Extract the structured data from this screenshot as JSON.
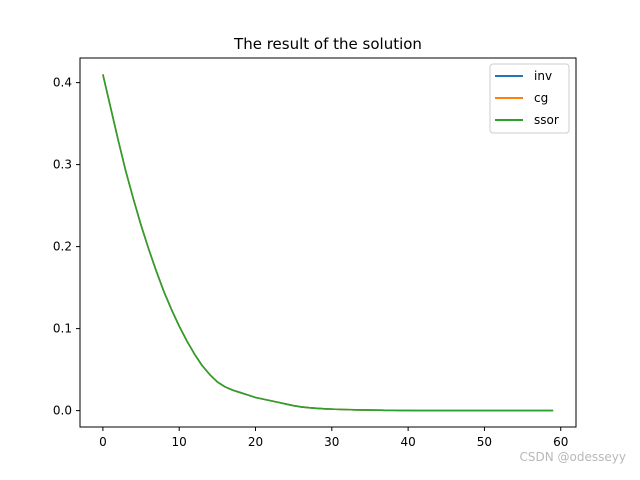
{
  "chart_data": {
    "type": "line",
    "title": "The result of the solution",
    "xlabel": "",
    "ylabel": "",
    "xlim": [
      -3,
      62
    ],
    "ylim": [
      -0.02,
      0.43
    ],
    "xticks": [
      0,
      10,
      20,
      30,
      40,
      50,
      60
    ],
    "yticks": [
      0.0,
      0.1,
      0.2,
      0.3,
      0.4
    ],
    "grid": false,
    "legend_position": "top-right",
    "x": [
      0,
      1,
      2,
      3,
      4,
      5,
      6,
      7,
      8,
      9,
      10,
      11,
      12,
      13,
      14,
      15,
      16,
      17,
      18,
      19,
      20,
      21,
      22,
      23,
      24,
      25,
      26,
      27,
      28,
      29,
      30,
      31,
      32,
      33,
      34,
      35,
      36,
      37,
      38,
      39,
      40,
      41,
      42,
      43,
      44,
      45,
      46,
      47,
      48,
      49,
      50,
      51,
      52,
      53,
      54,
      55,
      56,
      57,
      58,
      59
    ],
    "series": [
      {
        "name": "inv",
        "color": "#1f77b4",
        "values": [
          0.41,
          0.37,
          0.33,
          0.292,
          0.258,
          0.226,
          0.197,
          0.17,
          0.145,
          0.123,
          0.103,
          0.085,
          0.069,
          0.055,
          0.044,
          0.035,
          0.029,
          0.025,
          0.022,
          0.019,
          0.016,
          0.014,
          0.012,
          0.01,
          0.008,
          0.006,
          0.0045,
          0.0035,
          0.0028,
          0.0022,
          0.0018,
          0.0015,
          0.0012,
          0.001,
          0.0008,
          0.0006,
          0.0005,
          0.0004,
          0.0003,
          0.0002,
          0.0002,
          0.0001,
          0.0001,
          0.0001,
          0,
          0,
          0,
          0,
          0,
          0,
          0,
          0,
          0,
          0,
          0,
          0,
          0,
          0,
          0,
          0
        ]
      },
      {
        "name": "cg",
        "color": "#ff7f0e",
        "values": [
          0.41,
          0.37,
          0.33,
          0.292,
          0.258,
          0.226,
          0.197,
          0.17,
          0.145,
          0.123,
          0.103,
          0.085,
          0.069,
          0.055,
          0.044,
          0.035,
          0.029,
          0.025,
          0.022,
          0.019,
          0.016,
          0.014,
          0.012,
          0.01,
          0.008,
          0.006,
          0.0045,
          0.0035,
          0.0028,
          0.0022,
          0.0018,
          0.0015,
          0.0012,
          0.001,
          0.0008,
          0.0006,
          0.0005,
          0.0004,
          0.0003,
          0.0002,
          0.0002,
          0.0001,
          0.0001,
          0.0001,
          0,
          0,
          0,
          0,
          0,
          0,
          0,
          0,
          0,
          0,
          0,
          0,
          0,
          0,
          0,
          0
        ]
      },
      {
        "name": "ssor",
        "color": "#2ca02c",
        "values": [
          0.41,
          0.37,
          0.33,
          0.292,
          0.258,
          0.226,
          0.197,
          0.17,
          0.145,
          0.123,
          0.103,
          0.085,
          0.069,
          0.055,
          0.044,
          0.035,
          0.029,
          0.025,
          0.022,
          0.019,
          0.016,
          0.014,
          0.012,
          0.01,
          0.008,
          0.006,
          0.0045,
          0.0035,
          0.0028,
          0.0022,
          0.0018,
          0.0015,
          0.0012,
          0.001,
          0.0008,
          0.0006,
          0.0005,
          0.0004,
          0.0003,
          0.0002,
          0.0002,
          0.0001,
          0.0001,
          0.0001,
          0,
          0,
          0,
          0,
          0,
          0,
          0,
          0,
          0,
          0,
          0,
          0,
          0,
          0,
          0,
          0
        ]
      }
    ]
  },
  "watermark": "CSDN @odesseyy"
}
